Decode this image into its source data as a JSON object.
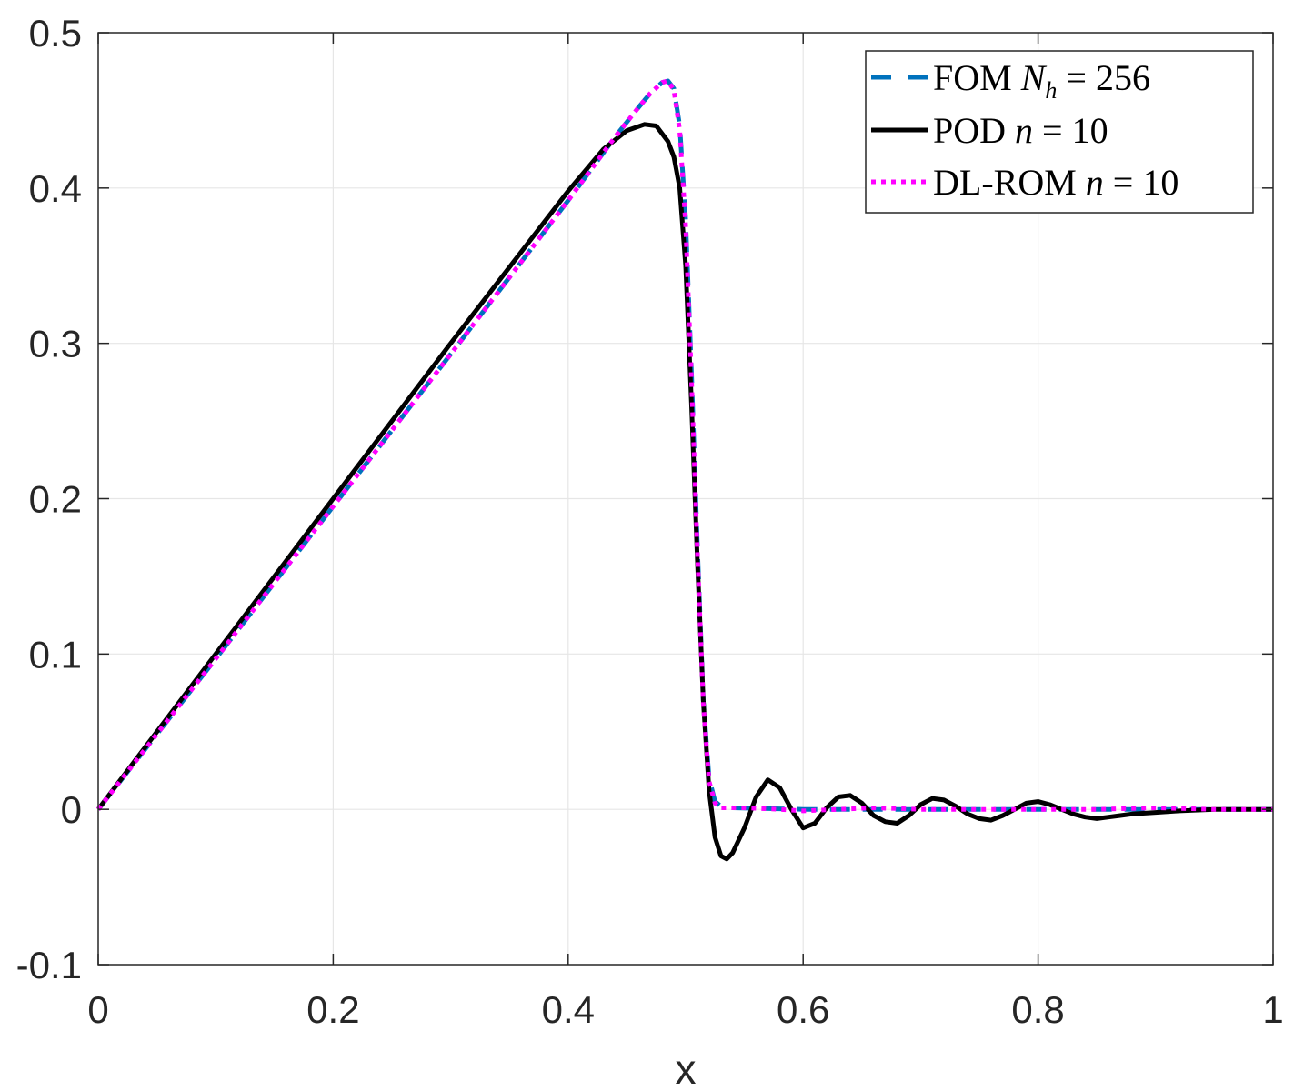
{
  "chart_data": {
    "type": "line",
    "title": "",
    "xlabel": "x",
    "ylabel": "",
    "xlim": [
      0,
      1
    ],
    "ylim": [
      -0.1,
      0.5
    ],
    "xticks": [
      "0",
      "0.2",
      "0.4",
      "0.6",
      "0.8",
      "1"
    ],
    "yticks": [
      "-0.1",
      "0",
      "0.1",
      "0.2",
      "0.3",
      "0.4",
      "0.5"
    ],
    "grid": true,
    "legend_position": "top-right",
    "series": [
      {
        "name": "FOM",
        "legend_label": {
          "prefix": "FOM ",
          "var": "N",
          "sub": "h",
          "suffix": " = 256"
        },
        "color": "#0072BD",
        "style": "dashed",
        "x": [
          0,
          0.1,
          0.2,
          0.3,
          0.4,
          0.44,
          0.46,
          0.47,
          0.48,
          0.485,
          0.49,
          0.495,
          0.5,
          0.505,
          0.51,
          0.515,
          0.52,
          0.525,
          0.53,
          0.54,
          0.6,
          0.7,
          0.8,
          0.9,
          1
        ],
        "y": [
          0,
          0.097,
          0.195,
          0.293,
          0.392,
          0.433,
          0.452,
          0.461,
          0.468,
          0.469,
          0.464,
          0.44,
          0.38,
          0.28,
          0.17,
          0.07,
          0.02,
          0.005,
          0.002,
          0.001,
          0,
          0,
          0,
          0,
          0
        ]
      },
      {
        "name": "POD",
        "legend_label": {
          "prefix": "POD ",
          "var": "n",
          "sub": "",
          "suffix": " = 10"
        },
        "color": "#000000",
        "style": "solid",
        "x": [
          0,
          0.1,
          0.2,
          0.3,
          0.4,
          0.43,
          0.45,
          0.465,
          0.475,
          0.485,
          0.49,
          0.495,
          0.5,
          0.505,
          0.51,
          0.515,
          0.52,
          0.525,
          0.53,
          0.535,
          0.54,
          0.55,
          0.56,
          0.57,
          0.58,
          0.59,
          0.6,
          0.61,
          0.62,
          0.63,
          0.64,
          0.65,
          0.66,
          0.67,
          0.68,
          0.69,
          0.7,
          0.71,
          0.72,
          0.73,
          0.74,
          0.75,
          0.76,
          0.77,
          0.78,
          0.79,
          0.8,
          0.81,
          0.82,
          0.83,
          0.84,
          0.85,
          0.86,
          0.87,
          0.88,
          0.9,
          0.92,
          0.95,
          1
        ],
        "y": [
          0,
          0.1,
          0.2,
          0.3,
          0.398,
          0.425,
          0.437,
          0.441,
          0.44,
          0.43,
          0.42,
          0.4,
          0.35,
          0.26,
          0.16,
          0.07,
          0.012,
          -0.018,
          -0.03,
          -0.032,
          -0.028,
          -0.012,
          0.008,
          0.019,
          0.014,
          0,
          -0.012,
          -0.009,
          0.001,
          0.008,
          0.009,
          0.004,
          -0.004,
          -0.008,
          -0.009,
          -0.004,
          0.003,
          0.007,
          0.006,
          0.002,
          -0.003,
          -0.006,
          -0.007,
          -0.004,
          0,
          0.004,
          0.005,
          0.003,
          0,
          -0.003,
          -0.005,
          -0.006,
          -0.005,
          -0.004,
          -0.003,
          -0.002,
          -0.001,
          0,
          0
        ]
      },
      {
        "name": "DL-ROM",
        "legend_label": {
          "prefix": "DL-ROM ",
          "var": "n",
          "sub": "",
          "suffix": " = 10"
        },
        "color": "#FF00FF",
        "style": "dotted",
        "x": [
          0,
          0.1,
          0.2,
          0.3,
          0.4,
          0.44,
          0.46,
          0.47,
          0.48,
          0.485,
          0.49,
          0.495,
          0.5,
          0.505,
          0.51,
          0.515,
          0.52,
          0.525,
          0.53,
          0.55,
          0.58,
          0.6,
          0.63,
          0.66,
          0.7,
          0.75,
          0.8,
          0.85,
          0.9,
          0.95,
          1
        ],
        "y": [
          0,
          0.097,
          0.195,
          0.293,
          0.392,
          0.433,
          0.452,
          0.461,
          0.468,
          0.469,
          0.463,
          0.437,
          0.376,
          0.276,
          0.166,
          0.068,
          0.018,
          0.004,
          0.001,
          0.001,
          0,
          -0.001,
          0,
          0.001,
          0,
          0,
          0,
          0,
          0.001,
          0,
          0
        ]
      }
    ]
  }
}
